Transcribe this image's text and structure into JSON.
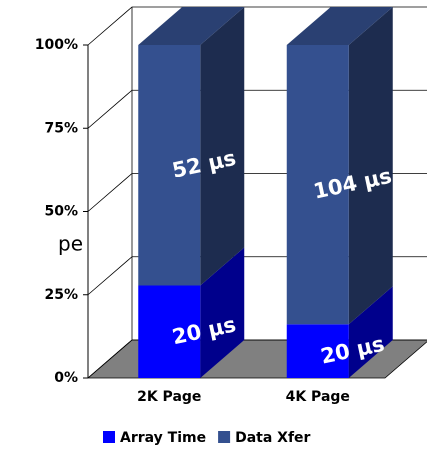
{
  "chart_data": {
    "type": "bar",
    "stack": "percent",
    "annotation": "pe",
    "categories": [
      "2K Page",
      "4K Page"
    ],
    "series": [
      {
        "name": "Array Time",
        "color": "#0000ff",
        "values": [
          20,
          20
        ],
        "value_labels": [
          "20 µs",
          "20 µs"
        ]
      },
      {
        "name": "Data Xfer",
        "color": "#34508f",
        "values": [
          52,
          104
        ],
        "value_labels": [
          "52 µs",
          "104 µs"
        ]
      }
    ],
    "ylim": [
      0,
      100
    ],
    "yticks": [
      {
        "value": 0,
        "label": "0%"
      },
      {
        "value": 25,
        "label": "25%"
      },
      {
        "value": 50,
        "label": "50%"
      },
      {
        "value": 75,
        "label": "75%"
      },
      {
        "value": 100,
        "label": "100%"
      }
    ],
    "grid": true,
    "legend": "bottom"
  }
}
